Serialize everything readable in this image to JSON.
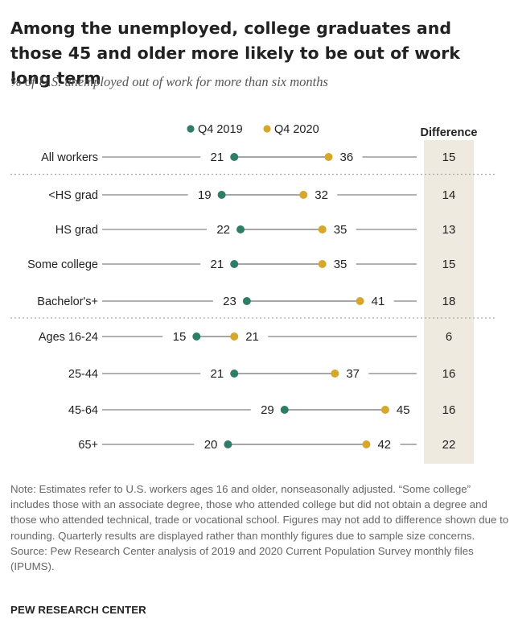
{
  "title": "Among the unemployed, college graduates and those 45 and older more likely to be out of work long term",
  "subtitle": "% of U.S. unemployed out of work for more than six months",
  "chart_data": {
    "type": "dot",
    "legend": [
      "Q4 2019",
      "Q4 2020"
    ],
    "difference_header": "Difference",
    "categories": [
      "All workers",
      "<HS grad",
      "HS grad",
      "Some college",
      "Bachelor's+",
      "Ages 16-24",
      "25-44",
      "45-64",
      "65+"
    ],
    "series": [
      {
        "name": "Q4 2019",
        "values": [
          21,
          19,
          22,
          21,
          23,
          15,
          21,
          29,
          20
        ]
      },
      {
        "name": "Q4 2020",
        "values": [
          36,
          32,
          35,
          35,
          41,
          21,
          37,
          45,
          42
        ]
      }
    ],
    "difference": [
      15,
      14,
      13,
      15,
      18,
      6,
      16,
      16,
      22
    ],
    "xlim": [
      0,
      50
    ],
    "groups": [
      [
        0
      ],
      [
        1,
        2,
        3,
        4
      ],
      [
        5,
        6,
        7,
        8
      ]
    ]
  },
  "colors": {
    "q2019": "#2e7d67",
    "q2020": "#d6a72b",
    "line": "#999999",
    "shade": "#eeeae0",
    "divider": "#aaaaaa"
  },
  "note_text": "Note: Estimates refer to U.S. workers ages 16 and older, nonseasonally adjusted. “Some college” includes those with an associate degree, those who attended college but did not obtain a degree and those who attended technical, trade or vocational school. Figures may not add to difference shown due to rounding. Quarterly results are displayed rather than monthly figures due to sample size concerns.",
  "source_text": "Source: Pew Research Center analysis of 2019 and 2020 Current Population Survey monthly files (IPUMS).",
  "brand": "PEW RESEARCH CENTER"
}
